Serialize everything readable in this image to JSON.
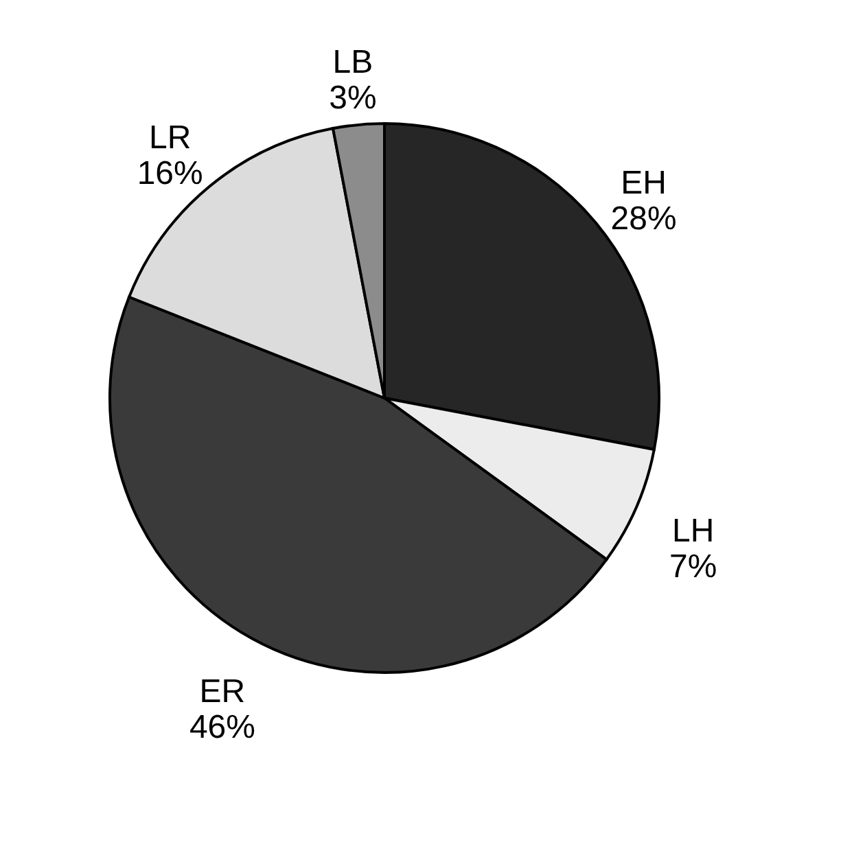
{
  "chart_data": {
    "type": "pie",
    "categories": [
      "EH",
      "LH",
      "ER",
      "LR",
      "LB"
    ],
    "values": [
      28,
      7,
      46,
      16,
      3
    ],
    "value_labels": [
      "28%",
      "7%",
      "46%",
      "16%",
      "3%"
    ],
    "colors": [
      "#262626",
      "#ececec",
      "#3a3a3a",
      "#dcdcdc",
      "#8c8c8c"
    ],
    "legend": false
  }
}
